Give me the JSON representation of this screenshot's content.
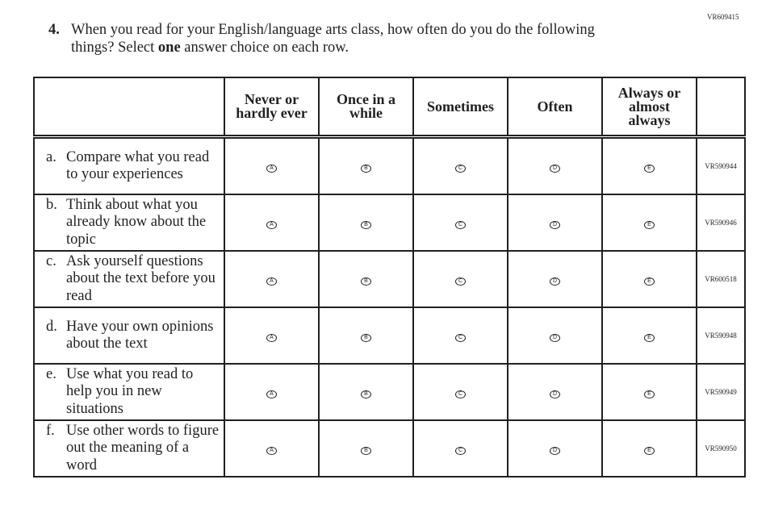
{
  "item_code": "VR609415",
  "question": {
    "number": "4.",
    "line1": "When you read for your English/language arts class, how often do you do the following",
    "line2_pre": "things? Select ",
    "line2_bold": "one",
    "line2_post": " answer choice on each row."
  },
  "columns": [
    "Never or hardly ever",
    "Once in a while",
    "Sometimes",
    "Often",
    "Always or almost always"
  ],
  "choices": [
    "A",
    "B",
    "C",
    "D",
    "E"
  ],
  "rows": [
    {
      "letter": "a.",
      "text": "Compare what you read to your experiences",
      "code": "VR590944"
    },
    {
      "letter": "b.",
      "text": "Think about what you already know about the topic",
      "code": "VR590946"
    },
    {
      "letter": "c.",
      "text": "Ask yourself questions about the text before you read",
      "code": "VR600518"
    },
    {
      "letter": "d.",
      "text": "Have your own opinions about the text",
      "code": "VR590948"
    },
    {
      "letter": "e.",
      "text": "Use what you read to help you in new situations",
      "code": "VR590949"
    },
    {
      "letter": "f.",
      "text": "Use other words to figure out the meaning of a word",
      "code": "VR590950"
    }
  ]
}
